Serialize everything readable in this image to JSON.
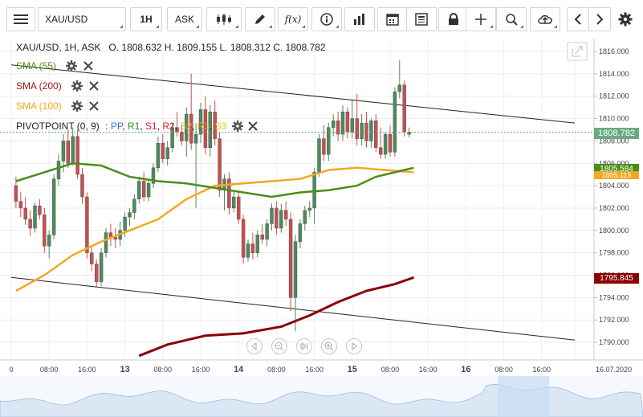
{
  "toolbar": {
    "menu_icon": "hamburger-menu-icon",
    "symbol": "XAU/USD",
    "timeframe": "1H",
    "price_type": "ASK",
    "chart_type_icon": "candlestick-icon",
    "draw_icon": "pencil-icon",
    "indicator_label": "f(x)",
    "info_icon": "info-icon",
    "volume_icon": "bar-chart-icon",
    "calendar_icon": "calendar-icon",
    "news_icon": "news-icon",
    "lock_icon": "lock-icon",
    "crosshair_icon": "crosshair-icon",
    "zoom_icon": "zoom-icon",
    "cloud_icon": "cloud-upload-icon",
    "prev_icon": "chevron-left-icon",
    "next_icon": "chevron-right-icon",
    "settings_icon": "gear-icon"
  },
  "header": {
    "instrument_line": "XAU/USD, 1H, ASK",
    "ohlc": "O. 1808.632 H. 1809.155 L. 1808.312 C. 1808.782"
  },
  "indicators": [
    {
      "label": "SMA (55)",
      "color": "#4a8e1a"
    },
    {
      "label": "SMA (200)",
      "color": "#a31515"
    },
    {
      "label": "SMA (100)",
      "color": "#f5a623"
    }
  ],
  "pivot": {
    "label": "PIVOTPOINT (0, 9)",
    "items": [
      {
        "label": "PP",
        "color": "#3a7bd5"
      },
      {
        "label": "R1",
        "color": "#2e8b2e"
      },
      {
        "label": "S1",
        "color": "#d62020"
      },
      {
        "label": "R2",
        "color": "#d62020"
      },
      {
        "label": "S2",
        "color": "#f5a623"
      },
      {
        "label": "R3",
        "color": "#f5a623"
      },
      {
        "label": "S3",
        "color": "#f5c400"
      }
    ]
  },
  "price_tags": [
    {
      "label": "1808.782",
      "value": 1808.782,
      "color": "#6aa884"
    },
    {
      "label": "1805.584",
      "value": 1805.584,
      "color": "#4a8e1a"
    },
    {
      "label": "1805.119",
      "value": 1805.119,
      "color": "#f5a623"
    },
    {
      "label": "1795.845",
      "value": 1795.845,
      "color": "#8b0000"
    }
  ],
  "chart_data": {
    "type": "candlestick",
    "y_ticks": [
      1790,
      1792,
      1794,
      1796,
      1798,
      1800,
      1802,
      1804,
      1806,
      1808,
      1810,
      1812,
      1814,
      1816
    ],
    "y_tick_labels": [
      "1790.000",
      "1792.000",
      "1794.000",
      "1796.000",
      "1798.000",
      "1800.000",
      "1802.000",
      "1804.000",
      "1806.000",
      "1808.000",
      "1810.000",
      "1812.000",
      "1814.000",
      "1816.000"
    ],
    "ylim": [
      1789.6,
      1817.0
    ],
    "x_labels": [
      {
        "label": "0",
        "slot": 0
      },
      {
        "label": "08:00",
        "slot": 8
      },
      {
        "label": "16:00",
        "slot": 16
      },
      {
        "label": "13",
        "slot": 24,
        "bold": true
      },
      {
        "label": "08:00",
        "slot": 32
      },
      {
        "label": "16:00",
        "slot": 40
      },
      {
        "label": "14",
        "slot": 48,
        "bold": true
      },
      {
        "label": "08:00",
        "slot": 56
      },
      {
        "label": "16:00",
        "slot": 64
      },
      {
        "label": "15",
        "slot": 72,
        "bold": true
      },
      {
        "label": "08:00",
        "slot": 80
      },
      {
        "label": "16:00",
        "slot": 88
      },
      {
        "label": "16",
        "slot": 96,
        "bold": true
      },
      {
        "label": "08:00",
        "slot": 104
      },
      {
        "label": "16:00",
        "slot": 112
      },
      {
        "label": "16.07.2020",
        "slot": 119
      }
    ],
    "candles": [
      {
        "o": 1804.0,
        "h": 1804.8,
        "l": 1802.0,
        "c": 1802.6
      },
      {
        "o": 1802.6,
        "h": 1803.4,
        "l": 1801.2,
        "c": 1802.0
      },
      {
        "o": 1802.0,
        "h": 1803.0,
        "l": 1800.5,
        "c": 1801.0
      },
      {
        "o": 1801.0,
        "h": 1801.8,
        "l": 1799.5,
        "c": 1800.2
      },
      {
        "o": 1800.2,
        "h": 1802.5,
        "l": 1799.8,
        "c": 1802.2
      },
      {
        "o": 1802.2,
        "h": 1802.8,
        "l": 1801.0,
        "c": 1801.4
      },
      {
        "o": 1801.4,
        "h": 1802.0,
        "l": 1798.0,
        "c": 1798.6
      },
      {
        "o": 1798.6,
        "h": 1800.0,
        "l": 1797.5,
        "c": 1799.6
      },
      {
        "o": 1799.6,
        "h": 1805.0,
        "l": 1799.2,
        "c": 1804.6
      },
      {
        "o": 1804.6,
        "h": 1806.8,
        "l": 1804.0,
        "c": 1806.2
      },
      {
        "o": 1806.2,
        "h": 1808.6,
        "l": 1805.2,
        "c": 1808.0
      },
      {
        "o": 1808.0,
        "h": 1809.0,
        "l": 1805.6,
        "c": 1806.0
      },
      {
        "o": 1806.0,
        "h": 1809.2,
        "l": 1805.8,
        "c": 1808.4
      },
      {
        "o": 1808.4,
        "h": 1809.0,
        "l": 1804.6,
        "c": 1805.0
      },
      {
        "o": 1805.0,
        "h": 1805.6,
        "l": 1802.4,
        "c": 1803.0
      },
      {
        "o": 1803.0,
        "h": 1803.4,
        "l": 1797.5,
        "c": 1798.0
      },
      {
        "o": 1798.0,
        "h": 1798.6,
        "l": 1796.4,
        "c": 1797.0
      },
      {
        "o": 1797.0,
        "h": 1797.4,
        "l": 1795.0,
        "c": 1795.4
      },
      {
        "o": 1795.4,
        "h": 1798.4,
        "l": 1795.0,
        "c": 1798.0
      },
      {
        "o": 1798.0,
        "h": 1800.2,
        "l": 1797.6,
        "c": 1799.8
      },
      {
        "o": 1799.8,
        "h": 1800.6,
        "l": 1798.6,
        "c": 1799.4
      },
      {
        "o": 1799.4,
        "h": 1800.2,
        "l": 1798.4,
        "c": 1799.2
      },
      {
        "o": 1799.2,
        "h": 1800.8,
        "l": 1798.6,
        "c": 1800.0
      },
      {
        "o": 1800.0,
        "h": 1801.6,
        "l": 1799.4,
        "c": 1801.2
      },
      {
        "o": 1801.2,
        "h": 1802.0,
        "l": 1800.4,
        "c": 1801.6
      },
      {
        "o": 1801.6,
        "h": 1803.2,
        "l": 1801.0,
        "c": 1802.8
      },
      {
        "o": 1802.8,
        "h": 1804.8,
        "l": 1802.4,
        "c": 1804.4
      },
      {
        "o": 1804.4,
        "h": 1805.2,
        "l": 1802.6,
        "c": 1803.0
      },
      {
        "o": 1803.0,
        "h": 1804.6,
        "l": 1802.6,
        "c": 1804.2
      },
      {
        "o": 1804.2,
        "h": 1806.0,
        "l": 1803.8,
        "c": 1805.6
      },
      {
        "o": 1805.6,
        "h": 1808.4,
        "l": 1805.2,
        "c": 1807.8
      },
      {
        "o": 1807.8,
        "h": 1808.6,
        "l": 1806.0,
        "c": 1806.4
      },
      {
        "o": 1806.4,
        "h": 1808.0,
        "l": 1805.8,
        "c": 1807.4
      },
      {
        "o": 1807.4,
        "h": 1809.6,
        "l": 1807.0,
        "c": 1809.2
      },
      {
        "o": 1809.2,
        "h": 1810.6,
        "l": 1808.4,
        "c": 1808.8
      },
      {
        "o": 1808.8,
        "h": 1809.4,
        "l": 1807.6,
        "c": 1808.0
      },
      {
        "o": 1808.0,
        "h": 1811.0,
        "l": 1806.6,
        "c": 1810.4
      },
      {
        "o": 1810.4,
        "h": 1814.0,
        "l": 1807.2,
        "c": 1807.8
      },
      {
        "o": 1807.8,
        "h": 1809.6,
        "l": 1802.0,
        "c": 1808.6
      },
      {
        "o": 1808.6,
        "h": 1811.4,
        "l": 1807.8,
        "c": 1810.8
      },
      {
        "o": 1810.8,
        "h": 1812.0,
        "l": 1806.8,
        "c": 1807.4
      },
      {
        "o": 1807.4,
        "h": 1811.2,
        "l": 1806.6,
        "c": 1810.6
      },
      {
        "o": 1810.6,
        "h": 1811.6,
        "l": 1807.6,
        "c": 1808.2
      },
      {
        "o": 1808.2,
        "h": 1808.8,
        "l": 1803.0,
        "c": 1803.6
      },
      {
        "o": 1803.6,
        "h": 1805.0,
        "l": 1801.8,
        "c": 1804.6
      },
      {
        "o": 1804.6,
        "h": 1805.2,
        "l": 1801.4,
        "c": 1802.0
      },
      {
        "o": 1802.0,
        "h": 1803.6,
        "l": 1801.6,
        "c": 1803.0
      },
      {
        "o": 1803.0,
        "h": 1803.4,
        "l": 1800.6,
        "c": 1801.0
      },
      {
        "o": 1801.0,
        "h": 1801.4,
        "l": 1797.0,
        "c": 1797.6
      },
      {
        "o": 1797.6,
        "h": 1799.2,
        "l": 1797.2,
        "c": 1798.8
      },
      {
        "o": 1798.8,
        "h": 1799.8,
        "l": 1797.4,
        "c": 1798.0
      },
      {
        "o": 1798.0,
        "h": 1800.0,
        "l": 1797.6,
        "c": 1799.6
      },
      {
        "o": 1799.6,
        "h": 1800.6,
        "l": 1798.8,
        "c": 1799.2
      },
      {
        "o": 1799.2,
        "h": 1801.0,
        "l": 1798.6,
        "c": 1800.6
      },
      {
        "o": 1800.6,
        "h": 1802.4,
        "l": 1800.0,
        "c": 1802.0
      },
      {
        "o": 1802.0,
        "h": 1802.6,
        "l": 1799.6,
        "c": 1800.2
      },
      {
        "o": 1800.2,
        "h": 1802.4,
        "l": 1799.8,
        "c": 1801.8
      },
      {
        "o": 1801.8,
        "h": 1802.6,
        "l": 1800.4,
        "c": 1801.0
      },
      {
        "o": 1801.0,
        "h": 1801.6,
        "l": 1792.8,
        "c": 1794.0
      },
      {
        "o": 1794.0,
        "h": 1799.6,
        "l": 1791.0,
        "c": 1799.0
      },
      {
        "o": 1799.0,
        "h": 1801.0,
        "l": 1798.4,
        "c": 1800.6
      },
      {
        "o": 1800.6,
        "h": 1802.2,
        "l": 1800.0,
        "c": 1801.8
      },
      {
        "o": 1801.8,
        "h": 1802.6,
        "l": 1801.2,
        "c": 1802.0
      },
      {
        "o": 1802.0,
        "h": 1805.6,
        "l": 1800.6,
        "c": 1805.2
      },
      {
        "o": 1805.2,
        "h": 1808.6,
        "l": 1804.8,
        "c": 1808.2
      },
      {
        "o": 1808.2,
        "h": 1809.4,
        "l": 1806.2,
        "c": 1806.8
      },
      {
        "o": 1806.8,
        "h": 1809.6,
        "l": 1806.2,
        "c": 1809.2
      },
      {
        "o": 1809.2,
        "h": 1810.4,
        "l": 1808.4,
        "c": 1809.8
      },
      {
        "o": 1809.8,
        "h": 1810.6,
        "l": 1808.0,
        "c": 1808.6
      },
      {
        "o": 1808.6,
        "h": 1811.2,
        "l": 1808.0,
        "c": 1810.6
      },
      {
        "o": 1810.6,
        "h": 1811.0,
        "l": 1808.2,
        "c": 1808.8
      },
      {
        "o": 1808.8,
        "h": 1811.6,
        "l": 1808.2,
        "c": 1810.0
      },
      {
        "o": 1810.0,
        "h": 1812.2,
        "l": 1807.6,
        "c": 1808.2
      },
      {
        "o": 1808.2,
        "h": 1810.4,
        "l": 1807.6,
        "c": 1809.6
      },
      {
        "o": 1809.6,
        "h": 1810.6,
        "l": 1807.4,
        "c": 1808.0
      },
      {
        "o": 1808.0,
        "h": 1810.0,
        "l": 1807.4,
        "c": 1809.8
      },
      {
        "o": 1809.8,
        "h": 1810.4,
        "l": 1807.0,
        "c": 1807.4
      },
      {
        "o": 1807.4,
        "h": 1809.2,
        "l": 1806.4,
        "c": 1806.8
      },
      {
        "o": 1806.8,
        "h": 1808.8,
        "l": 1806.4,
        "c": 1808.6
      },
      {
        "o": 1808.6,
        "h": 1809.4,
        "l": 1806.6,
        "c": 1807.0
      },
      {
        "o": 1807.0,
        "h": 1812.8,
        "l": 1806.6,
        "c": 1812.4
      },
      {
        "o": 1812.4,
        "h": 1815.2,
        "l": 1811.8,
        "c": 1813.0
      },
      {
        "o": 1813.0,
        "h": 1813.4,
        "l": 1808.4,
        "c": 1808.8
      },
      {
        "o": 1808.6,
        "h": 1809.2,
        "l": 1808.3,
        "c": 1808.8
      }
    ],
    "sma55": [
      [
        0,
        1804.4
      ],
      [
        6,
        1805.2
      ],
      [
        12,
        1806.0
      ],
      [
        18,
        1805.8
      ],
      [
        24,
        1804.8
      ],
      [
        30,
        1804.4
      ],
      [
        36,
        1804.2
      ],
      [
        42,
        1803.8
      ],
      [
        48,
        1803.4
      ],
      [
        54,
        1803.0
      ],
      [
        60,
        1803.4
      ],
      [
        66,
        1803.6
      ],
      [
        72,
        1804.0
      ],
      [
        76,
        1804.8
      ],
      [
        80,
        1805.2
      ],
      [
        84,
        1805.6
      ]
    ],
    "sma100": [
      [
        0,
        1794.6
      ],
      [
        6,
        1796.0
      ],
      [
        12,
        1797.8
      ],
      [
        18,
        1799.0
      ],
      [
        24,
        1800.0
      ],
      [
        30,
        1801.0
      ],
      [
        36,
        1802.8
      ],
      [
        42,
        1804.0
      ],
      [
        48,
        1804.2
      ],
      [
        54,
        1804.4
      ],
      [
        60,
        1804.6
      ],
      [
        66,
        1805.4
      ],
      [
        72,
        1805.6
      ],
      [
        78,
        1805.4
      ],
      [
        84,
        1805.2
      ]
    ],
    "sma200": [
      [
        26,
        1788.8
      ],
      [
        32,
        1789.8
      ],
      [
        40,
        1790.6
      ],
      [
        48,
        1790.8
      ],
      [
        56,
        1791.4
      ],
      [
        62,
        1792.4
      ],
      [
        68,
        1793.6
      ],
      [
        74,
        1794.6
      ],
      [
        80,
        1795.2
      ],
      [
        84,
        1795.8
      ]
    ],
    "channel_upper": [
      [
        0,
        1814.8
      ],
      [
        119,
        1809.6
      ]
    ],
    "channel_lower": [
      [
        0,
        1795.8
      ],
      [
        119,
        1790.2
      ]
    ],
    "close_line": 1808.782
  }
}
